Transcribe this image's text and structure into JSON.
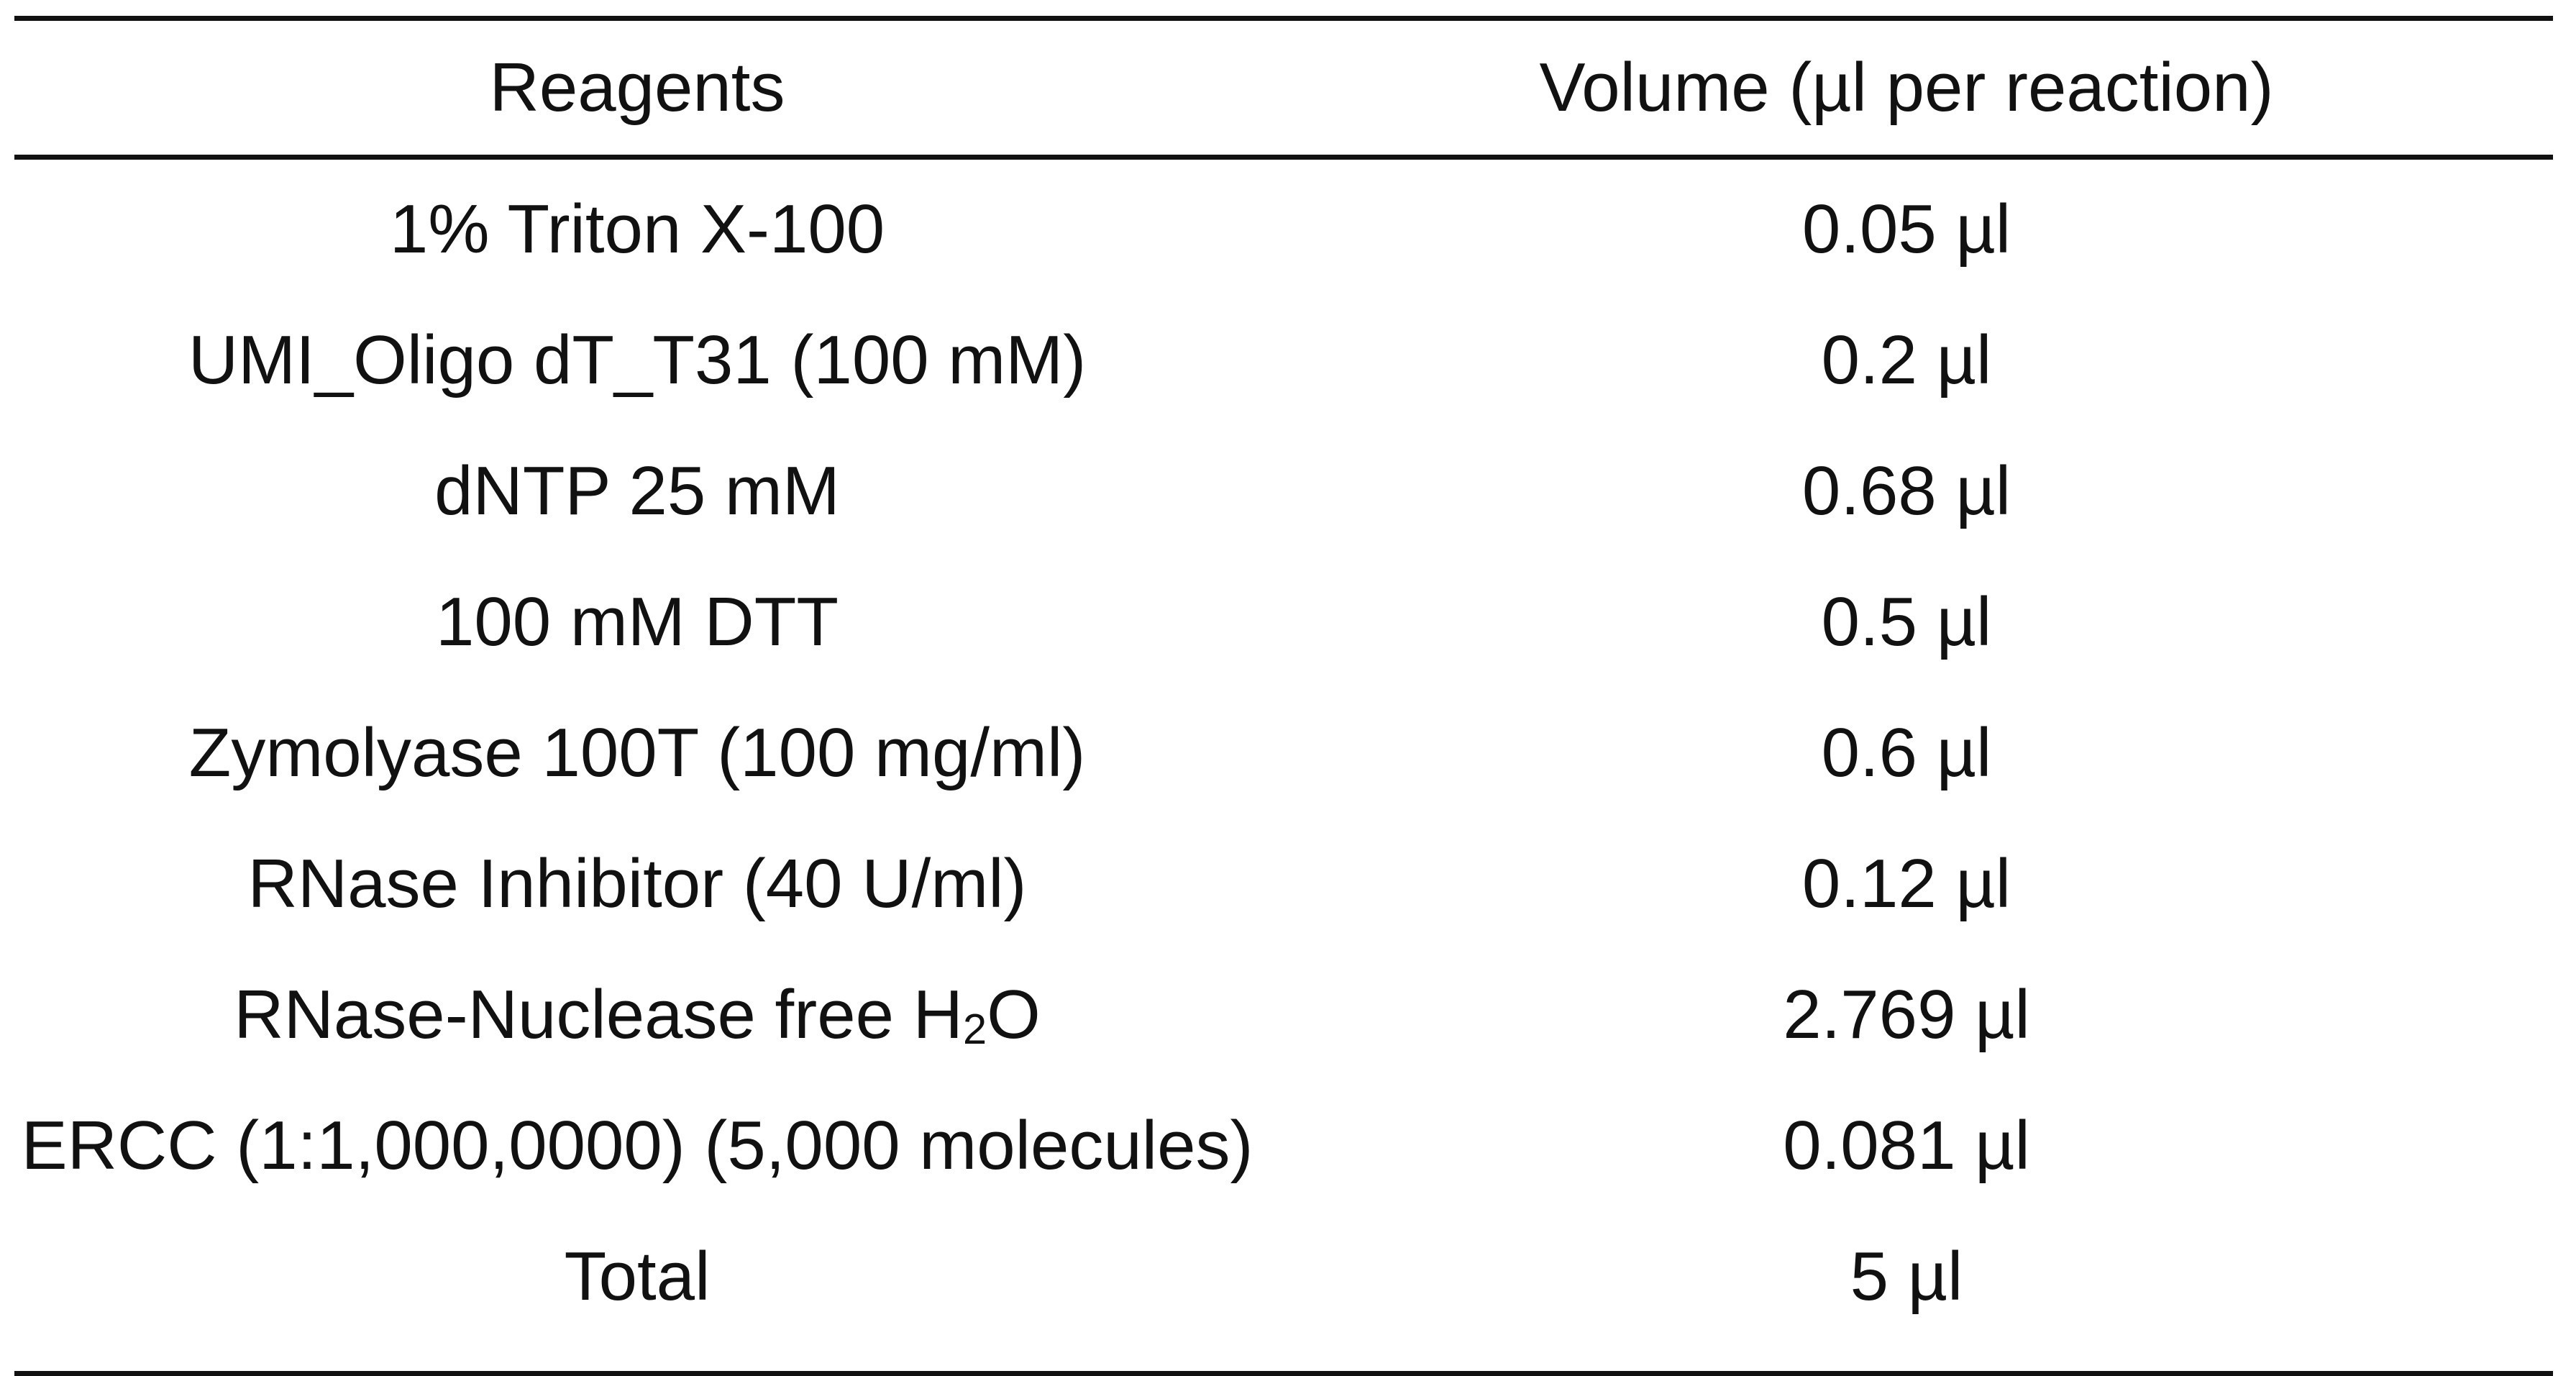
{
  "table": {
    "headers": {
      "reagents": "Reagents",
      "volume": "Volume (µl per reaction)"
    },
    "rows": [
      {
        "reagent": "1% Triton X-100",
        "volume": "0.05 µl"
      },
      {
        "reagent": "UMI_Oligo dT_T31 (100 mM)",
        "volume": "0.2 µl"
      },
      {
        "reagent": "dNTP 25 mM",
        "volume": "0.68 µl"
      },
      {
        "reagent": "100 mM DTT",
        "volume": "0.5 µl"
      },
      {
        "reagent": "Zymolyase 100T (100 mg/ml)",
        "volume": "0.6 µl"
      },
      {
        "reagent": "RNase Inhibitor (40 U/ml)",
        "volume": "0.12 µl"
      },
      {
        "reagent_prefix": "RNase-Nuclease free H",
        "reagent_sub": "2",
        "reagent_suffix": "O",
        "volume": "2.769 µl"
      },
      {
        "reagent": "ERCC (1:1,000,0000) (5,000 molecules)",
        "volume": "0.081 µl"
      },
      {
        "reagent": "Total",
        "volume": "5 µl"
      }
    ]
  }
}
